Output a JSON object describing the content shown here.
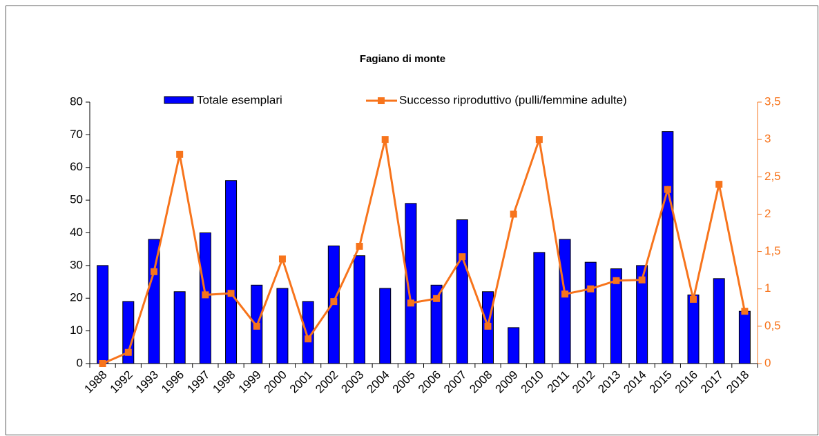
{
  "chart_data": {
    "type": "bar_line",
    "title": "Fagiano di monte",
    "categories": [
      "1988",
      "1992",
      "1993",
      "1996",
      "1997",
      "1998",
      "1999",
      "2000",
      "2001",
      "2002",
      "2003",
      "2004",
      "2005",
      "2006",
      "2007",
      "2008",
      "2009",
      "2010",
      "2011",
      "2012",
      "2013",
      "2014",
      "2015",
      "2016",
      "2017",
      "2018"
    ],
    "series": [
      {
        "name": "Totale esemplari",
        "color": "#0000ff",
        "type": "bar",
        "values": [
          30,
          19,
          38,
          22,
          40,
          56,
          24,
          23,
          19,
          36,
          33,
          23,
          49,
          24,
          44,
          22,
          11,
          34,
          38,
          31,
          29,
          30,
          71,
          21,
          26,
          16
        ]
      },
      {
        "name": "Successo riproduttivo (pulli/femmine adulte)",
        "color": "#f7741c",
        "type": "line",
        "axis": "y2",
        "values": [
          0,
          0.15,
          1.23,
          2.8,
          0.92,
          0.94,
          0.5,
          1.4,
          0.33,
          0.83,
          1.57,
          3,
          0.81,
          0.87,
          1.43,
          0.5,
          2,
          3,
          0.93,
          1,
          1.11,
          1.12,
          2.33,
          0.86,
          2.4,
          0.7
        ]
      }
    ],
    "ylim": [
      0,
      80
    ],
    "yticks": [
      0,
      10,
      20,
      30,
      40,
      50,
      60,
      70,
      80
    ],
    "y2lim": [
      0,
      3.5
    ],
    "y2ticks": [
      0,
      {
        "value": 0.5,
        "label": "0,5"
      },
      1,
      {
        "value": 1.5,
        "label": "1,5"
      },
      2,
      {
        "value": 2.5,
        "label": "2,5"
      },
      3,
      {
        "value": 3.5,
        "label": "3,5"
      }
    ],
    "legend": "top"
  }
}
